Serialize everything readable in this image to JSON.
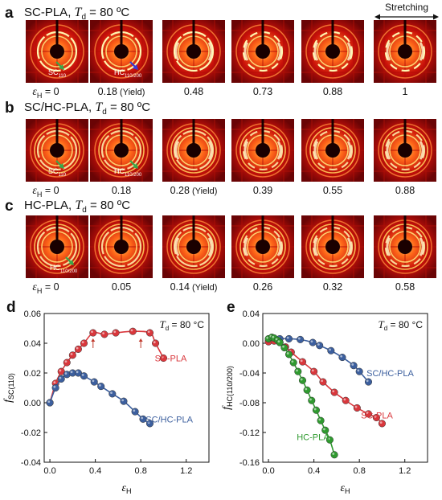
{
  "panels": {
    "a": {
      "letter": "a",
      "sample": "SC-PLA",
      "td_sym": "T",
      "td_sub": "d",
      "td_value": " = 80 ºC",
      "stretch_label": "Stretching",
      "strains": [
        {
          "value": "0",
          "sym": true,
          "note": ""
        },
        {
          "value": "0.18",
          "sym": false,
          "note": "(Yield)"
        },
        {
          "value": "0.48",
          "sym": false,
          "note": ""
        },
        {
          "value": "0.73",
          "sym": false,
          "note": ""
        },
        {
          "value": "0.88",
          "sym": false,
          "note": ""
        },
        {
          "value": "1",
          "sym": false,
          "note": ""
        }
      ],
      "annotations": [
        {
          "text": "SC",
          "sub": "110",
          "img": 0
        },
        {
          "text": "HC",
          "sub": "110/200",
          "img": 1
        }
      ]
    },
    "b": {
      "letter": "b",
      "sample": "SC/HC-PLA",
      "td_sym": "T",
      "td_sub": "d",
      "td_value": " = 80 ºC",
      "strains": [
        {
          "value": "0",
          "sym": true,
          "note": ""
        },
        {
          "value": "0.18",
          "sym": false,
          "note": ""
        },
        {
          "value": "0.28",
          "sym": false,
          "note": "(Yield)"
        },
        {
          "value": "0.39",
          "sym": false,
          "note": ""
        },
        {
          "value": "0.55",
          "sym": false,
          "note": ""
        },
        {
          "value": "0.88",
          "sym": false,
          "note": ""
        }
      ],
      "annotations": [
        {
          "text": "SC",
          "sub": "110",
          "img": 0
        },
        {
          "text": "HC",
          "sub": "110/200",
          "img": 1
        }
      ]
    },
    "c": {
      "letter": "c",
      "sample": "HC-PLA",
      "td_sym": "T",
      "td_sub": "d",
      "td_value": " = 80 ºC",
      "strains": [
        {
          "value": "0",
          "sym": true,
          "note": ""
        },
        {
          "value": "0.05",
          "sym": false,
          "note": ""
        },
        {
          "value": "0.14",
          "sym": false,
          "note": "(Yield)"
        },
        {
          "value": "0.26",
          "sym": false,
          "note": ""
        },
        {
          "value": "0.32",
          "sym": false,
          "note": ""
        },
        {
          "value": "0.58",
          "sym": false,
          "note": ""
        }
      ],
      "annotations": [
        {
          "text": "HC",
          "sub": "110/200",
          "img": 0
        }
      ]
    },
    "strain_symbol": "ε",
    "strain_sub": "H",
    "equals": " = "
  },
  "colors": {
    "sc_pla": "#d9373c",
    "sc_hc_pla": "#3c5f9e",
    "hc_pla": "#2f9a2f",
    "arrow_green": "#3aa64a",
    "arrow_blue": "#3b3bd6"
  },
  "chart_data": [
    {
      "panel": "d",
      "type": "line",
      "ylabel_sym": "f",
      "ylabel_sub": "SC(110)",
      "xlabel_sym": "ε",
      "xlabel_sub": "H",
      "annotation": {
        "sym": "T",
        "sub": "d",
        "text": " = 80 °C"
      },
      "xlim": [
        -0.05,
        1.4
      ],
      "ylim": [
        -0.04,
        0.06
      ],
      "xticks": [
        "0.0",
        "0.4",
        "0.8",
        "1.2"
      ],
      "xtick_values": [
        0,
        0.4,
        0.8,
        1.2
      ],
      "yticks": [
        "-0.04",
        "-0.02",
        "0.00",
        "0.02",
        "0.04",
        "0.06"
      ],
      "ytick_values": [
        -0.04,
        -0.02,
        0,
        0.02,
        0.04,
        0.06
      ],
      "series": [
        {
          "name": "SC-PLA",
          "color": "#d9373c",
          "x": [
            0.0,
            0.05,
            0.1,
            0.15,
            0.2,
            0.25,
            0.3,
            0.38,
            0.48,
            0.58,
            0.73,
            0.88,
            0.93,
            1.0
          ],
          "y": [
            0.0,
            0.013,
            0.021,
            0.027,
            0.032,
            0.036,
            0.04,
            0.047,
            0.046,
            0.047,
            0.048,
            0.047,
            0.04,
            0.03
          ]
        },
        {
          "name": "SC/HC-PLA",
          "color": "#3c5f9e",
          "x": [
            0.0,
            0.05,
            0.1,
            0.15,
            0.2,
            0.25,
            0.3,
            0.39,
            0.45,
            0.55,
            0.65,
            0.75,
            0.82,
            0.88
          ],
          "y": [
            0.0,
            0.01,
            0.016,
            0.019,
            0.02,
            0.02,
            0.018,
            0.014,
            0.011,
            0.006,
            0.001,
            -0.006,
            -0.011,
            -0.014
          ]
        }
      ],
      "markers": [
        0.38,
        0.8
      ]
    },
    {
      "panel": "e",
      "type": "line",
      "ylabel_sym": "f",
      "ylabel_sub": "HC(110/200)",
      "xlabel_sym": "ε",
      "xlabel_sub": "H",
      "annotation": {
        "sym": "T",
        "sub": "d",
        "text": " = 80 °C"
      },
      "xlim": [
        -0.05,
        1.4
      ],
      "ylim": [
        -0.16,
        0.04
      ],
      "xticks": [
        "0.0",
        "0.4",
        "0.8",
        "1.2"
      ],
      "xtick_values": [
        0,
        0.4,
        0.8,
        1.2
      ],
      "yticks": [
        "-0.16",
        "-0.12",
        "-0.08",
        "-0.04",
        "0.00",
        "0.04"
      ],
      "ytick_values": [
        -0.16,
        -0.12,
        -0.08,
        -0.04,
        0,
        0.04
      ],
      "series": [
        {
          "name": "SC/HC-PLA",
          "color": "#3c5f9e",
          "x": [
            0.0,
            0.05,
            0.1,
            0.18,
            0.28,
            0.39,
            0.45,
            0.55,
            0.65,
            0.75,
            0.8,
            0.88
          ],
          "y": [
            0.003,
            0.005,
            0.006,
            0.006,
            0.005,
            0.001,
            -0.003,
            -0.01,
            -0.019,
            -0.03,
            -0.038,
            -0.052
          ]
        },
        {
          "name": "SC-PLA",
          "color": "#d9373c",
          "x": [
            0.0,
            0.05,
            0.1,
            0.15,
            0.2,
            0.3,
            0.4,
            0.48,
            0.58,
            0.68,
            0.78,
            0.88,
            0.95,
            1.0
          ],
          "y": [
            0.002,
            0.003,
            0.001,
            -0.005,
            -0.012,
            -0.025,
            -0.038,
            -0.052,
            -0.066,
            -0.077,
            -0.087,
            -0.095,
            -0.1,
            -0.108
          ]
        },
        {
          "name": "HC-PLA",
          "color": "#2f9a2f",
          "x": [
            0.0,
            0.03,
            0.05,
            0.08,
            0.1,
            0.14,
            0.18,
            0.22,
            0.26,
            0.3,
            0.34,
            0.38,
            0.42,
            0.46,
            0.5,
            0.54,
            0.58
          ],
          "y": [
            0.006,
            0.008,
            0.007,
            0.004,
            0.001,
            -0.006,
            -0.015,
            -0.026,
            -0.038,
            -0.05,
            -0.063,
            -0.077,
            -0.09,
            -0.104,
            -0.117,
            -0.13,
            -0.15
          ]
        }
      ]
    }
  ]
}
